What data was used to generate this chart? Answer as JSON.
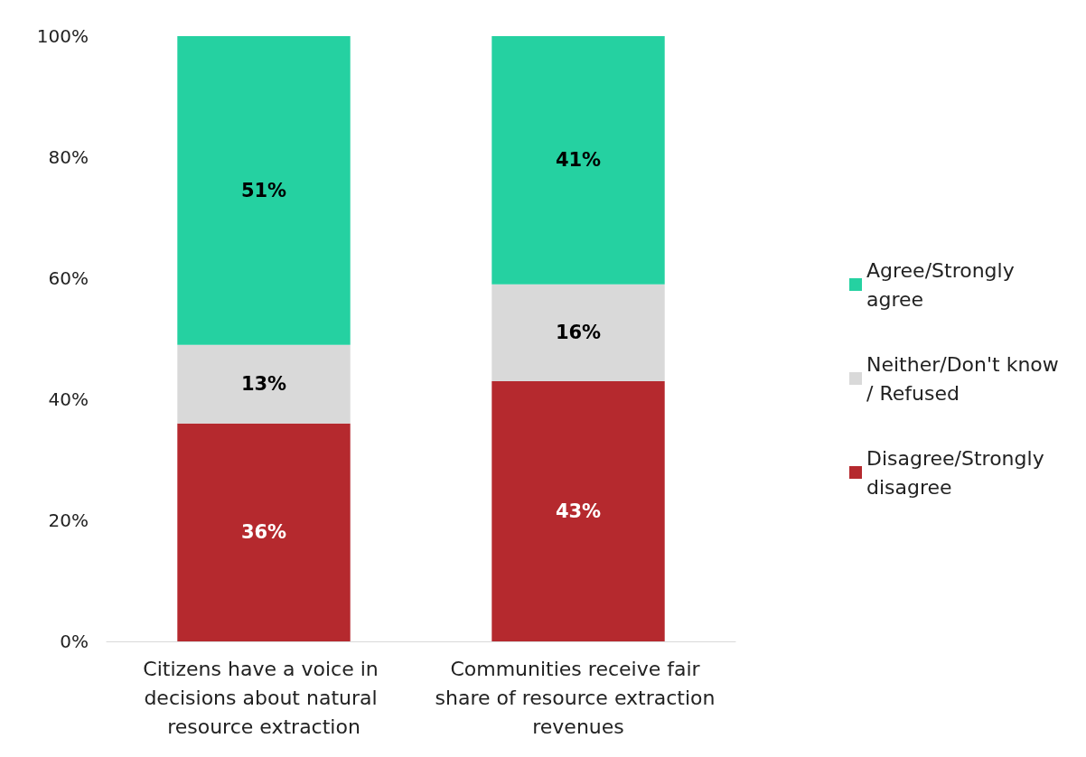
{
  "chart_data": {
    "type": "bar",
    "stacked": true,
    "categories": [
      "Citizens have a voice in decisions about natural resource extraction",
      "Communities receive fair share of resource extraction revenues"
    ],
    "series": [
      {
        "name": "Disagree/Strongly disagree",
        "color": "#b5292e",
        "values": [
          36,
          43
        ],
        "value_labels": [
          "36%",
          "43%"
        ]
      },
      {
        "name": "Neither/Don't know/ Refused",
        "color": "#d9d9d9",
        "values": [
          13,
          16
        ],
        "value_labels": [
          "13%",
          "16%"
        ]
      },
      {
        "name": "Agree/Strongly agree",
        "color": "#25d1a1",
        "values": [
          51,
          41
        ],
        "value_labels": [
          "51%",
          "41%"
        ]
      }
    ],
    "ylim": [
      0,
      100
    ],
    "yticks": [
      {
        "value": 0,
        "label": "0%"
      },
      {
        "value": 20,
        "label": "20%"
      },
      {
        "value": 40,
        "label": "40%"
      },
      {
        "value": 60,
        "label": "60%"
      },
      {
        "value": 80,
        "label": "80%"
      },
      {
        "value": 100,
        "label": "100%"
      }
    ],
    "grid": false,
    "legend": "right"
  }
}
